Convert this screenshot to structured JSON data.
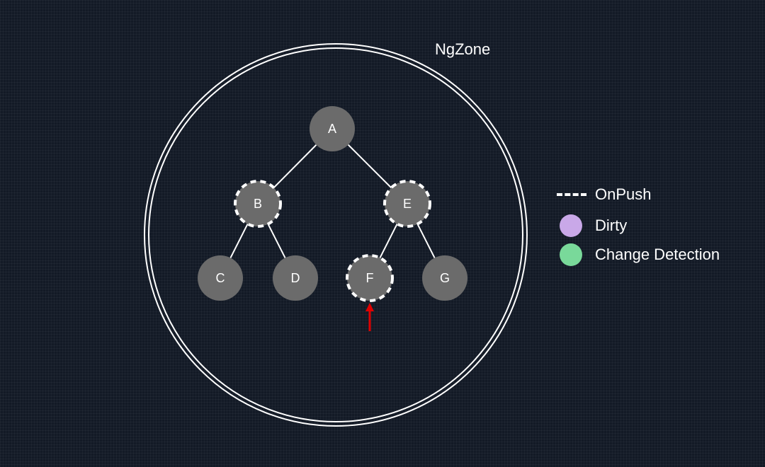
{
  "zone": {
    "label": "NgZone"
  },
  "nodes": [
    {
      "id": "A",
      "label": "A",
      "onpush": false,
      "state": "normal"
    },
    {
      "id": "B",
      "label": "B",
      "onpush": true,
      "state": "normal"
    },
    {
      "id": "E",
      "label": "E",
      "onpush": true,
      "state": "normal"
    },
    {
      "id": "C",
      "label": "C",
      "onpush": false,
      "state": "normal"
    },
    {
      "id": "D",
      "label": "D",
      "onpush": false,
      "state": "normal"
    },
    {
      "id": "F",
      "label": "F",
      "onpush": true,
      "state": "normal"
    },
    {
      "id": "G",
      "label": "G",
      "onpush": false,
      "state": "normal"
    }
  ],
  "edges": [
    [
      "A",
      "B"
    ],
    [
      "A",
      "E"
    ],
    [
      "B",
      "C"
    ],
    [
      "B",
      "D"
    ],
    [
      "E",
      "F"
    ],
    [
      "E",
      "G"
    ]
  ],
  "event_target": "F",
  "legend": {
    "items": [
      {
        "label": "OnPush",
        "swatch": "dashed-line",
        "color": "#ffffff"
      },
      {
        "label": "Dirty",
        "swatch": "dot",
        "color": "#c9a8e8"
      },
      {
        "label": "Change Detection",
        "swatch": "dot",
        "color": "#79d99a"
      }
    ]
  },
  "colors": {
    "background": "#131a26",
    "node_fill": "#6b6b6b",
    "edge": "#ffffff",
    "zone_ring": "#ffffff",
    "arrow": "#e00000"
  }
}
